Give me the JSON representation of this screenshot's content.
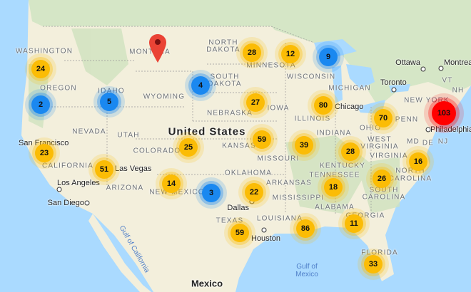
{
  "colors": {
    "cluster_small": "#fbbc05",
    "cluster_blue": "#1a88f0",
    "cluster_large": "#ff0000",
    "water": "#aadaff",
    "land": "#f3efdc",
    "canada": "#d5e6c6",
    "marker": "#ea4335"
  },
  "country_label": "United States",
  "country_mexico": "Mexico",
  "water_labels": [
    "Gulf of California",
    "Gulf of Mexico"
  ],
  "state_labels": [
    "WASHINGTON",
    "MONTANA",
    "NORTH",
    "DAKOTA",
    "SOUTH",
    "DAKOTA",
    "OREGON",
    "IDAHO",
    "WYOMING",
    "NEBRASKA",
    "NEVADA",
    "UTAH",
    "COLORADO",
    "KANSAS",
    "CALIFORNIA",
    "ARIZONA",
    "NEW MEXICO",
    "OKLAHOMA",
    "TEXAS",
    "MINNESOTA",
    "WISCONSIN",
    "MICHIGAN",
    "IOWA",
    "ILLINOIS",
    "INDIANA",
    "OHIO",
    "PENN",
    "NEW YORK",
    "VT",
    "NH",
    "MD",
    "DE",
    "NJ",
    "WEST",
    "VIRGINIA",
    "VIRGINIA",
    "KENTUCKY",
    "TENNESSEE",
    "NORTH",
    "CAROLINA",
    "SOUTH",
    "CAROLINA",
    "ARKANSAS",
    "MISSISSIPPI",
    "ALABAMA",
    "GEORGIA",
    "LOUISIANA",
    "FLORIDA",
    "MISSOURI"
  ],
  "cities": [
    "Ottawa",
    "Montreal",
    "Toronto",
    "Chicago",
    "Philadelphia",
    "San Francisco",
    "Las Vegas",
    "Los Angeles",
    "San Diego",
    "Houston",
    "Dallas"
  ],
  "marker": {
    "icon": "map-pin-icon"
  },
  "clusters": [
    {
      "count": "24",
      "level": "small"
    },
    {
      "count": "2",
      "level": "blue"
    },
    {
      "count": "5",
      "level": "blue"
    },
    {
      "count": "4",
      "level": "blue"
    },
    {
      "count": "28",
      "level": "small"
    },
    {
      "count": "12",
      "level": "small"
    },
    {
      "count": "9",
      "level": "blue"
    },
    {
      "count": "27",
      "level": "small"
    },
    {
      "count": "80",
      "level": "small"
    },
    {
      "count": "70",
      "level": "small"
    },
    {
      "count": "103",
      "level": "large"
    },
    {
      "count": "59",
      "level": "small"
    },
    {
      "count": "39",
      "level": "small"
    },
    {
      "count": "25",
      "level": "small"
    },
    {
      "count": "23",
      "level": "small"
    },
    {
      "count": "28",
      "level": "small"
    },
    {
      "count": "16",
      "level": "small"
    },
    {
      "count": "51",
      "level": "small"
    },
    {
      "count": "14",
      "level": "small"
    },
    {
      "count": "26",
      "level": "small"
    },
    {
      "count": "18",
      "level": "small"
    },
    {
      "count": "22",
      "level": "small"
    },
    {
      "count": "3",
      "level": "blue"
    },
    {
      "count": "59",
      "level": "small"
    },
    {
      "count": "86",
      "level": "small"
    },
    {
      "count": "11",
      "level": "small"
    },
    {
      "count": "33",
      "level": "small"
    }
  ]
}
